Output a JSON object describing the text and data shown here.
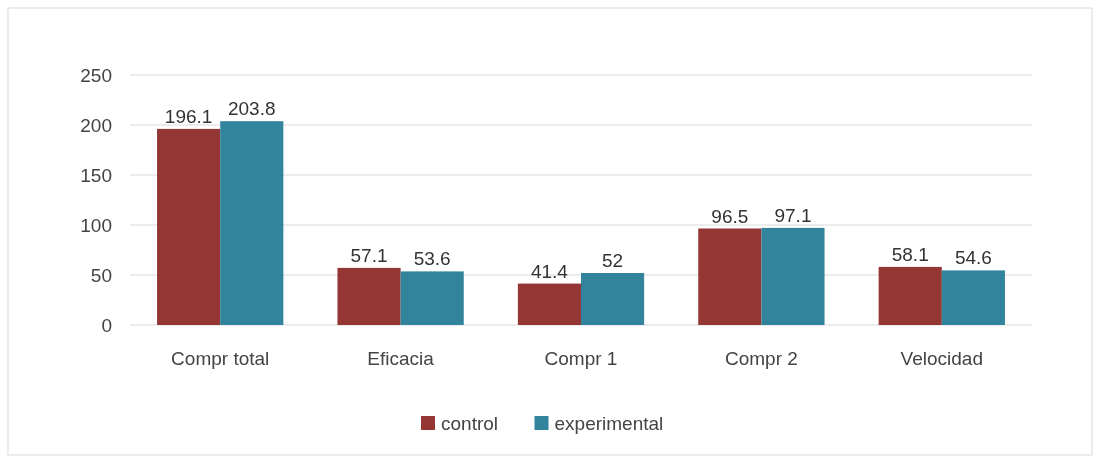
{
  "chart_data": {
    "type": "bar",
    "categories": [
      "Compr total",
      "Eficacia",
      "Compr 1",
      "Compr 2",
      "Velocidad"
    ],
    "series": [
      {
        "name": "control",
        "color": "#943634",
        "values": [
          196.1,
          57.1,
          41.4,
          96.5,
          58.1
        ]
      },
      {
        "name": "experimental",
        "color": "#31849b",
        "values": [
          203.8,
          53.6,
          52,
          97.1,
          54.6
        ]
      }
    ],
    "ylim": [
      0,
      250
    ],
    "yticks": [
      0,
      50,
      100,
      150,
      200,
      250
    ],
    "grid": "y",
    "legend": "bottom",
    "data_labels": true
  }
}
